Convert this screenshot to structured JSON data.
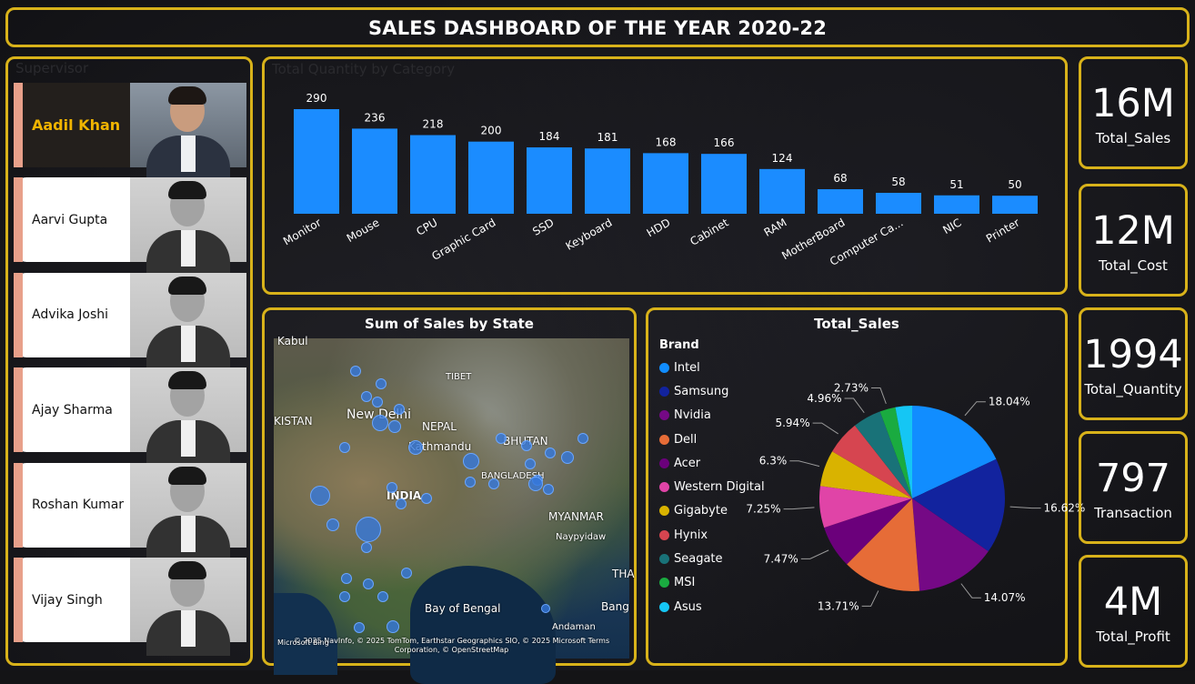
{
  "title": "SALES DASHBOARD OF THE YEAR 2020-22",
  "supervisor": {
    "title": "Supervisor",
    "people": [
      {
        "name": "Aadil Khan",
        "active": true
      },
      {
        "name": "Aarvi Gupta",
        "active": false
      },
      {
        "name": "Advika Joshi",
        "active": false
      },
      {
        "name": "Ajay Sharma",
        "active": false
      },
      {
        "name": "Roshan Kumar",
        "active": false
      },
      {
        "name": "Vijay Singh",
        "active": false
      }
    ]
  },
  "category_chart": {
    "title": "Total Quantity by Category",
    "bar_color": "#1b8cff"
  },
  "map": {
    "title": "Sum of Sales by State",
    "labels": [
      "Kabul",
      "TIBET",
      "KISTAN",
      "New Delhi",
      "NEPAL",
      "Kathmandu",
      "BHUTAN",
      "BANGLADESH",
      "INDIA",
      "MYANMAR",
      "Naypyidaw",
      "Bay of Bengal",
      "Andaman",
      "THA",
      "Bang"
    ],
    "attribution": "© 2025 NavInfo, © 2025 TomTom, Earthstar Geographics SIO, © 2025 Microsoft Terms Corporation, © OpenStreetMap",
    "bing": "Microsoft Bing"
  },
  "pie": {
    "title": "Total_Sales",
    "legend_title": "Brand"
  },
  "kpis": [
    {
      "value": "16M",
      "label": "Total_Sales"
    },
    {
      "value": "12M",
      "label": "Total_Cost"
    },
    {
      "value": "1994",
      "label": "Total_Quantity"
    },
    {
      "value": "797",
      "label": "Transaction"
    },
    {
      "value": "4M",
      "label": "Total_Profit"
    }
  ],
  "chart_data": [
    {
      "type": "bar",
      "title": "Total Quantity by Category",
      "categories": [
        "Monitor",
        "Mouse",
        "CPU",
        "Graphic Card",
        "SSD",
        "Keyboard",
        "HDD",
        "Cabinet",
        "RAM",
        "MotherBoard",
        "Computer Ca...",
        "NIC",
        "Printer"
      ],
      "values": [
        290,
        236,
        218,
        200,
        184,
        181,
        168,
        166,
        124,
        68,
        58,
        51,
        50
      ],
      "data_labels": true,
      "grid": false
    },
    {
      "type": "pie",
      "title": "Total_Sales",
      "legend_title": "Brand",
      "legend_placement": "left",
      "slices": [
        {
          "name": "Intel",
          "percent": 18.04,
          "label": "18.04%",
          "color": "#118dff"
        },
        {
          "name": "Samsung",
          "percent": 16.62,
          "label": "16.62%",
          "color": "#12239e"
        },
        {
          "name": "Nvidia",
          "percent": 14.07,
          "label": "14.07%",
          "color": "#750985"
        },
        {
          "name": "Dell",
          "percent": 13.71,
          "label": "13.71%",
          "color": "#e66c37"
        },
        {
          "name": "Acer",
          "percent": 7.47,
          "label": "7.47%",
          "color": "#6b007b"
        },
        {
          "name": "Western Digital",
          "percent": 7.25,
          "label": "7.25%",
          "color": "#e044a7"
        },
        {
          "name": "Gigabyte",
          "percent": 6.3,
          "label": "6.3%",
          "color": "#d9b300"
        },
        {
          "name": "Hynix",
          "percent": 5.94,
          "label": "5.94%",
          "color": "#d64550"
        },
        {
          "name": "Seagate",
          "percent": 4.96,
          "label": "4.96%",
          "color": "#197278"
        },
        {
          "name": "MSI",
          "percent": 2.73,
          "label": "2.73%",
          "color": "#1aab40"
        },
        {
          "name": "Asus",
          "percent": 2.91,
          "label": "",
          "color": "#15c6f4"
        }
      ]
    }
  ]
}
